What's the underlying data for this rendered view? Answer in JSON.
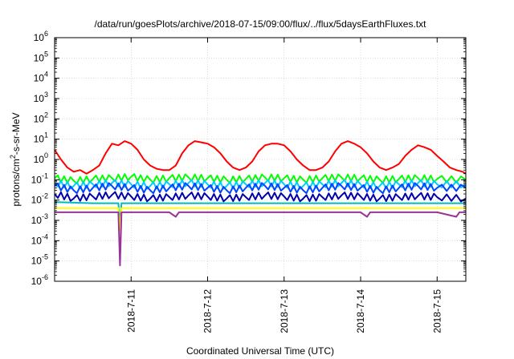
{
  "chart_data": {
    "type": "line",
    "title": "/data/run/goesPlots/archive/2018-07-15/09:00/flux/../flux/5daysEarthFluxes.txt",
    "xlabel": "Coordinated Universal Time (UTC)",
    "ylabel": "protons/cm2-s-sr-MeV",
    "ylabel_parts": {
      "base": "protons/cm",
      "sup": "2",
      "rest": "-s-sr-MeV"
    },
    "y_scale": "log",
    "ylim": [
      "1e-6",
      "1e6"
    ],
    "y_ticks": [
      {
        "value": -6,
        "base": "10",
        "exp": "-6"
      },
      {
        "value": -5,
        "base": "10",
        "exp": "-5"
      },
      {
        "value": -4,
        "base": "10",
        "exp": "-4"
      },
      {
        "value": -3,
        "base": "10",
        "exp": "-3"
      },
      {
        "value": -2,
        "base": "10",
        "exp": "-2"
      },
      {
        "value": -1,
        "base": "10",
        "exp": "-1"
      },
      {
        "value": 0,
        "base": "10",
        "exp": "0"
      },
      {
        "value": 1,
        "base": "10",
        "exp": "1"
      },
      {
        "value": 2,
        "base": "10",
        "exp": "2"
      },
      {
        "value": 3,
        "base": "10",
        "exp": "3"
      },
      {
        "value": 4,
        "base": "10",
        "exp": "4"
      },
      {
        "value": 5,
        "base": "10",
        "exp": "5"
      },
      {
        "value": 6,
        "base": "10",
        "exp": "6"
      }
    ],
    "xlim": [
      "2018-07-10T00:00",
      "2018-07-15T09:00"
    ],
    "x_ticks": [
      {
        "date": "2018-07-11T00:00",
        "label": "2018-7-11"
      },
      {
        "date": "2018-07-12T00:00",
        "label": "2018-7-12"
      },
      {
        "date": "2018-07-13T00:00",
        "label": "2018-7-13"
      },
      {
        "date": "2018-07-14T00:00",
        "label": "2018-7-14"
      },
      {
        "date": "2018-07-15T00:00",
        "label": "2018-7-15"
      }
    ],
    "grid": true,
    "legend": "none",
    "series": [
      {
        "color": "#ff0000",
        "points": [
          [
            "2018-07-10T00:00",
            3.0
          ],
          [
            "2018-07-10T02:00",
            1.0
          ],
          [
            "2018-07-10T04:00",
            0.4
          ],
          [
            "2018-07-10T06:00",
            0.25
          ],
          [
            "2018-07-10T08:00",
            0.3
          ],
          [
            "2018-07-10T10:00",
            0.2
          ],
          [
            "2018-07-10T12:00",
            0.3
          ],
          [
            "2018-07-10T14:00",
            0.5
          ],
          [
            "2018-07-10T16:00",
            2.0
          ],
          [
            "2018-07-10T18:00",
            6.0
          ],
          [
            "2018-07-10T20:00",
            5.0
          ],
          [
            "2018-07-10T22:00",
            8.0
          ],
          [
            "2018-07-11T00:00",
            6.0
          ],
          [
            "2018-07-11T02:00",
            3.0
          ],
          [
            "2018-07-11T04:00",
            1.0
          ],
          [
            "2018-07-11T06:00",
            0.5
          ],
          [
            "2018-07-11T08:00",
            0.35
          ],
          [
            "2018-07-11T10:00",
            0.3
          ],
          [
            "2018-07-11T12:00",
            0.3
          ],
          [
            "2018-07-11T14:00",
            0.5
          ],
          [
            "2018-07-11T16:00",
            2.0
          ],
          [
            "2018-07-11T18:00",
            5.0
          ],
          [
            "2018-07-11T20:00",
            8.0
          ],
          [
            "2018-07-11T22:00",
            7.0
          ],
          [
            "2018-07-12T00:00",
            6.0
          ],
          [
            "2018-07-12T02:00",
            4.0
          ],
          [
            "2018-07-12T04:00",
            2.0
          ],
          [
            "2018-07-12T06:00",
            0.8
          ],
          [
            "2018-07-12T08:00",
            0.4
          ],
          [
            "2018-07-12T10:00",
            0.3
          ],
          [
            "2018-07-12T12:00",
            0.4
          ],
          [
            "2018-07-12T14:00",
            0.8
          ],
          [
            "2018-07-12T16:00",
            2.5
          ],
          [
            "2018-07-12T18:00",
            5.0
          ],
          [
            "2018-07-12T20:00",
            6.0
          ],
          [
            "2018-07-12T22:00",
            6.0
          ],
          [
            "2018-07-13T00:00",
            5.0
          ],
          [
            "2018-07-13T02:00",
            2.5
          ],
          [
            "2018-07-13T04:00",
            1.0
          ],
          [
            "2018-07-13T06:00",
            0.5
          ],
          [
            "2018-07-13T08:00",
            0.3
          ],
          [
            "2018-07-13T10:00",
            0.3
          ],
          [
            "2018-07-13T12:00",
            0.4
          ],
          [
            "2018-07-13T14:00",
            0.8
          ],
          [
            "2018-07-13T16:00",
            2.5
          ],
          [
            "2018-07-13T18:00",
            6.0
          ],
          [
            "2018-07-13T20:00",
            8.0
          ],
          [
            "2018-07-13T22:00",
            6.0
          ],
          [
            "2018-07-14T00:00",
            4.0
          ],
          [
            "2018-07-14T02:00",
            2.0
          ],
          [
            "2018-07-14T04:00",
            0.8
          ],
          [
            "2018-07-14T06:00",
            0.4
          ],
          [
            "2018-07-14T08:00",
            0.3
          ],
          [
            "2018-07-14T10:00",
            0.4
          ],
          [
            "2018-07-14T12:00",
            0.6
          ],
          [
            "2018-07-14T14:00",
            1.5
          ],
          [
            "2018-07-14T16:00",
            3.0
          ],
          [
            "2018-07-14T18:00",
            5.0
          ],
          [
            "2018-07-14T20:00",
            4.0
          ],
          [
            "2018-07-14T22:00",
            3.0
          ],
          [
            "2018-07-15T00:00",
            1.5
          ],
          [
            "2018-07-15T02:00",
            0.8
          ],
          [
            "2018-07-15T04:00",
            0.4
          ],
          [
            "2018-07-15T06:00",
            0.3
          ],
          [
            "2018-07-15T08:00",
            0.25
          ],
          [
            "2018-07-15T09:00",
            0.2
          ]
        ]
      },
      {
        "color": "#00ff00",
        "points": [
          [
            "2018-07-10T00:00",
            0.12
          ],
          [
            "2018-07-10T06:00",
            0.09
          ],
          [
            "2018-07-10T12:00",
            0.11
          ],
          [
            "2018-07-10T18:00",
            0.12
          ],
          [
            "2018-07-11T00:00",
            0.14
          ],
          [
            "2018-07-11T06:00",
            0.1
          ],
          [
            "2018-07-11T12:00",
            0.12
          ],
          [
            "2018-07-11T18:00",
            0.13
          ],
          [
            "2018-07-12T00:00",
            0.12
          ],
          [
            "2018-07-12T06:00",
            0.1
          ],
          [
            "2018-07-12T12:00",
            0.11
          ],
          [
            "2018-07-12T18:00",
            0.13
          ],
          [
            "2018-07-13T00:00",
            0.12
          ],
          [
            "2018-07-13T06:00",
            0.1
          ],
          [
            "2018-07-13T12:00",
            0.12
          ],
          [
            "2018-07-13T18:00",
            0.13
          ],
          [
            "2018-07-14T00:00",
            0.12
          ],
          [
            "2018-07-14T06:00",
            0.1
          ],
          [
            "2018-07-14T12:00",
            0.11
          ],
          [
            "2018-07-14T18:00",
            0.12
          ],
          [
            "2018-07-15T00:00",
            0.11
          ],
          [
            "2018-07-15T09:00",
            0.1
          ]
        ]
      },
      {
        "color": "#00ccff",
        "points": [
          [
            "2018-07-10T00:00",
            0.07
          ],
          [
            "2018-07-10T06:00",
            0.05
          ],
          [
            "2018-07-10T12:00",
            0.06
          ],
          [
            "2018-07-10T18:00",
            0.07
          ],
          [
            "2018-07-11T00:00",
            0.06
          ],
          [
            "2018-07-11T06:00",
            0.05
          ],
          [
            "2018-07-11T12:00",
            0.06
          ],
          [
            "2018-07-11T18:00",
            0.07
          ],
          [
            "2018-07-12T00:00",
            0.06
          ],
          [
            "2018-07-12T06:00",
            0.05
          ],
          [
            "2018-07-12T12:00",
            0.06
          ],
          [
            "2018-07-12T18:00",
            0.07
          ],
          [
            "2018-07-13T00:00",
            0.06
          ],
          [
            "2018-07-13T06:00",
            0.05
          ],
          [
            "2018-07-13T12:00",
            0.06
          ],
          [
            "2018-07-13T18:00",
            0.07
          ],
          [
            "2018-07-14T00:00",
            0.06
          ],
          [
            "2018-07-14T06:00",
            0.05
          ],
          [
            "2018-07-14T12:00",
            0.06
          ],
          [
            "2018-07-14T18:00",
            0.07
          ],
          [
            "2018-07-15T00:00",
            0.06
          ],
          [
            "2018-07-15T09:00",
            0.06
          ]
        ]
      },
      {
        "color": "#0044ff",
        "points": [
          [
            "2018-07-10T00:00",
            0.05
          ],
          [
            "2018-07-10T06:00",
            0.03
          ],
          [
            "2018-07-10T12:00",
            0.04
          ],
          [
            "2018-07-10T18:00",
            0.05
          ],
          [
            "2018-07-11T00:00",
            0.04
          ],
          [
            "2018-07-11T06:00",
            0.03
          ],
          [
            "2018-07-11T12:00",
            0.04
          ],
          [
            "2018-07-11T18:00",
            0.05
          ],
          [
            "2018-07-12T00:00",
            0.04
          ],
          [
            "2018-07-12T06:00",
            0.03
          ],
          [
            "2018-07-12T12:00",
            0.04
          ],
          [
            "2018-07-12T18:00",
            0.05
          ],
          [
            "2018-07-13T00:00",
            0.04
          ],
          [
            "2018-07-13T06:00",
            0.03
          ],
          [
            "2018-07-13T12:00",
            0.04
          ],
          [
            "2018-07-13T18:00",
            0.05
          ],
          [
            "2018-07-14T00:00",
            0.04
          ],
          [
            "2018-07-14T06:00",
            0.03
          ],
          [
            "2018-07-14T12:00",
            0.04
          ],
          [
            "2018-07-14T18:00",
            0.05
          ],
          [
            "2018-07-15T00:00",
            0.04
          ],
          [
            "2018-07-15T09:00",
            0.04
          ]
        ]
      },
      {
        "color": "#0000aa",
        "points": [
          [
            "2018-07-10T00:00",
            0.02
          ],
          [
            "2018-07-10T06:00",
            0.012
          ],
          [
            "2018-07-10T12:00",
            0.015
          ],
          [
            "2018-07-10T18:00",
            0.018
          ],
          [
            "2018-07-11T00:00",
            0.015
          ],
          [
            "2018-07-11T06:00",
            0.012
          ],
          [
            "2018-07-11T12:00",
            0.014
          ],
          [
            "2018-07-11T18:00",
            0.017
          ],
          [
            "2018-07-12T00:00",
            0.015
          ],
          [
            "2018-07-12T06:00",
            0.012
          ],
          [
            "2018-07-12T12:00",
            0.014
          ],
          [
            "2018-07-12T18:00",
            0.017
          ],
          [
            "2018-07-13T00:00",
            0.015
          ],
          [
            "2018-07-13T06:00",
            0.012
          ],
          [
            "2018-07-13T12:00",
            0.014
          ],
          [
            "2018-07-13T18:00",
            0.017
          ],
          [
            "2018-07-14T00:00",
            0.015
          ],
          [
            "2018-07-14T06:00",
            0.012
          ],
          [
            "2018-07-14T12:00",
            0.014
          ],
          [
            "2018-07-14T18:00",
            0.016
          ],
          [
            "2018-07-15T00:00",
            0.014
          ],
          [
            "2018-07-15T09:00",
            0.012
          ]
        ]
      },
      {
        "color": "#00bbbb",
        "points": [
          [
            "2018-07-10T00:00",
            0.008
          ],
          [
            "2018-07-10T12:00",
            0.007
          ],
          [
            "2018-07-10T20:00",
            0.007
          ],
          [
            "2018-07-10T20:30",
            0.0006
          ],
          [
            "2018-07-10T21:00",
            0.007
          ],
          [
            "2018-07-11T12:00",
            0.007
          ],
          [
            "2018-07-12T00:00",
            0.007
          ],
          [
            "2018-07-12T12:00",
            0.007
          ],
          [
            "2018-07-13T00:00",
            0.007
          ],
          [
            "2018-07-13T12:00",
            0.007
          ],
          [
            "2018-07-14T00:00",
            0.007
          ],
          [
            "2018-07-14T12:00",
            0.007
          ],
          [
            "2018-07-15T00:00",
            0.007
          ],
          [
            "2018-07-15T09:00",
            0.007
          ]
        ]
      },
      {
        "color": "#ffff00",
        "points": [
          [
            "2018-07-10T00:00",
            0.004
          ],
          [
            "2018-07-10T12:00",
            0.004
          ],
          [
            "2018-07-10T20:00",
            0.004
          ],
          [
            "2018-07-10T20:30",
            0.0003
          ],
          [
            "2018-07-10T21:00",
            0.004
          ],
          [
            "2018-07-11T12:00",
            0.004
          ],
          [
            "2018-07-12T00:00",
            0.004
          ],
          [
            "2018-07-12T12:00",
            0.004
          ],
          [
            "2018-07-13T00:00",
            0.004
          ],
          [
            "2018-07-13T12:00",
            0.004
          ],
          [
            "2018-07-14T00:00",
            0.004
          ],
          [
            "2018-07-14T12:00",
            0.004
          ],
          [
            "2018-07-15T00:00",
            0.004
          ],
          [
            "2018-07-15T09:00",
            0.004
          ]
        ]
      },
      {
        "color": "#993399",
        "points": [
          [
            "2018-07-10T00:00",
            0.0025
          ],
          [
            "2018-07-10T12:00",
            0.0025
          ],
          [
            "2018-07-10T20:00",
            0.0025
          ],
          [
            "2018-07-10T20:30",
            6e-06
          ],
          [
            "2018-07-10T21:00",
            0.0025
          ],
          [
            "2018-07-11T12:00",
            0.0025
          ],
          [
            "2018-07-11T14:00",
            0.0015
          ],
          [
            "2018-07-11T15:00",
            0.0025
          ],
          [
            "2018-07-12T00:00",
            0.0025
          ],
          [
            "2018-07-12T12:00",
            0.0025
          ],
          [
            "2018-07-13T00:00",
            0.0025
          ],
          [
            "2018-07-13T12:00",
            0.0025
          ],
          [
            "2018-07-14T00:00",
            0.0025
          ],
          [
            "2018-07-14T02:00",
            0.0015
          ],
          [
            "2018-07-14T03:00",
            0.0025
          ],
          [
            "2018-07-14T12:00",
            0.0025
          ],
          [
            "2018-07-15T00:00",
            0.0025
          ],
          [
            "2018-07-15T06:00",
            0.0015
          ],
          [
            "2018-07-15T07:00",
            0.0025
          ],
          [
            "2018-07-15T09:00",
            0.0025
          ]
        ]
      }
    ]
  }
}
